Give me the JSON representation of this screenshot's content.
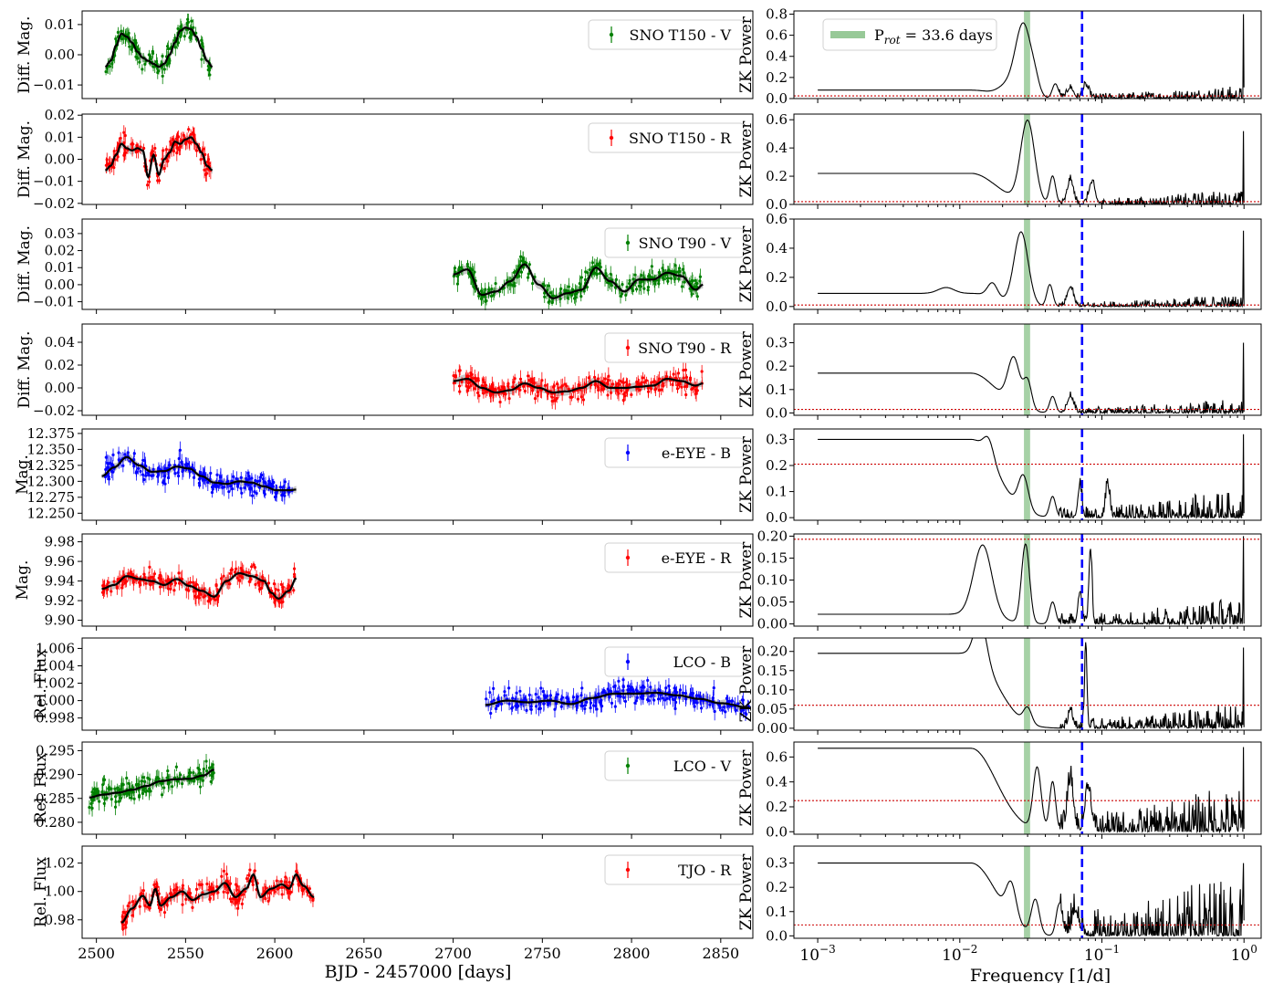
{
  "figure": {
    "left_xlabel": "BJD - 2457000 [days]",
    "right_xlabel": "Frequency [1/d]",
    "right_ylabel": "ZK Power",
    "left_xticks": [
      "2500",
      "2550",
      "2600",
      "2650",
      "2700",
      "2750",
      "2800",
      "2850"
    ],
    "left_xticks_values": [
      2500,
      2550,
      2600,
      2650,
      2700,
      2750,
      2800,
      2850
    ],
    "left_xlim": [
      2492,
      2868
    ],
    "right_xticks_labels": [
      {
        "base": "10",
        "exp": "−3"
      },
      {
        "base": "10",
        "exp": "−2"
      },
      {
        "base": "10",
        "exp": "−1"
      },
      {
        "base": "10",
        "exp": "0"
      }
    ],
    "right_xticks_values": [
      0.001,
      0.01,
      0.1,
      1
    ],
    "right_xlim": [
      0.00068,
      1.32
    ],
    "rotation_period_freq": 0.02976,
    "rotation_legend_main": "P",
    "rotation_legend_sub": "rot",
    "rotation_legend_rest": " = 33.6 days",
    "blue_dashed_freq": 0.0725,
    "colors": {
      "green": "#008000",
      "red": "#ff0000",
      "blue": "#0000ff",
      "band": "#97c997",
      "fap": "#cc0000",
      "model": "#000000",
      "gp": "#c8c8c8"
    }
  },
  "chart_data": [
    {
      "type": "line",
      "name": "SNO T150 - V",
      "ylabel": "Diff. Mag.",
      "yticks": [
        "0.01",
        "0.00",
        "−0.01"
      ],
      "yticks_values": [
        0.01,
        0.0,
        -0.01
      ],
      "ylim": [
        -0.0145,
        0.0145
      ],
      "color": "green",
      "x_range": [
        2505,
        2565
      ],
      "model": {
        "x": [
          2505,
          2508,
          2511,
          2514,
          2517,
          2520,
          2523,
          2526,
          2529,
          2532,
          2535,
          2538,
          2541,
          2544,
          2547,
          2550,
          2553,
          2556,
          2559,
          2562,
          2565
        ],
        "y": [
          -0.004,
          -0.002,
          0.003,
          0.007,
          0.006,
          0.004,
          0.001,
          -0.001,
          -0.002,
          -0.003,
          -0.004,
          -0.003,
          0.0,
          0.004,
          0.008,
          0.009,
          0.0085,
          0.006,
          0.002,
          -0.002,
          -0.004
        ]
      },
      "periodogram": {
        "fap": 0.025,
        "ylim": [
          0,
          0.83
        ],
        "yticks": [
          "0.0",
          "0.2",
          "0.4",
          "0.6",
          "0.8"
        ],
        "yticks_values": [
          0,
          0.2,
          0.4,
          0.6,
          0.8
        ],
        "peaks": [
          {
            "f": 0.028,
            "h": 0.7,
            "w": 0.08
          },
          {
            "f": 0.021,
            "h": 0.08,
            "w": 0.08
          },
          {
            "f": 0.034,
            "h": 0.08,
            "w": 0.04
          },
          {
            "f": 0.047,
            "h": 0.14,
            "w": 0.03
          },
          {
            "f": 0.06,
            "h": 0.1,
            "w": 0.03
          },
          {
            "f": 0.077,
            "h": 0.12,
            "w": 0.03
          }
        ],
        "base": 0.08,
        "noise": 0.12,
        "spike": 0.8
      }
    },
    {
      "type": "line",
      "name": "SNO T150 - R",
      "ylabel": "Diff. Mag.",
      "yticks": [
        "0.02",
        "0.01",
        "0.00",
        "−0.01",
        "−0.02"
      ],
      "yticks_values": [
        0.02,
        0.01,
        0.0,
        -0.01,
        -0.02
      ],
      "ylim": [
        -0.0205,
        0.0205
      ],
      "color": "red",
      "x_range": [
        2505,
        2565
      ],
      "model": {
        "x": [
          2505,
          2508,
          2511,
          2514,
          2517,
          2520,
          2523,
          2526,
          2529,
          2532,
          2535,
          2538,
          2541,
          2544,
          2547,
          2550,
          2553,
          2556,
          2559,
          2562,
          2565
        ],
        "y": [
          -0.005,
          -0.003,
          0.002,
          0.007,
          0.005,
          0.004,
          0.005,
          0.004,
          -0.008,
          0.002,
          -0.007,
          0.0,
          0.003,
          0.008,
          0.007,
          0.009,
          0.01,
          0.007,
          0.003,
          -0.003,
          -0.005
        ]
      },
      "periodogram": {
        "fap": 0.02,
        "ylim": [
          0,
          0.64
        ],
        "yticks": [
          "0.0",
          "0.2",
          "0.4",
          "0.6"
        ],
        "yticks_values": [
          0,
          0.2,
          0.4,
          0.6
        ],
        "peaks": [
          {
            "f": 0.03,
            "h": 0.58,
            "w": 0.07
          },
          {
            "f": 0.045,
            "h": 0.2,
            "w": 0.03
          },
          {
            "f": 0.06,
            "h": 0.17,
            "w": 0.03
          },
          {
            "f": 0.085,
            "h": 0.15,
            "w": 0.03
          }
        ],
        "base": 0.22,
        "noise": 0.1,
        "spike": 0.52
      }
    },
    {
      "type": "line",
      "name": "SNO T90 - V",
      "ylabel": "Diff. Mag.",
      "yticks": [
        "0.03",
        "0.02",
        "0.01",
        "0.00",
        "−0.01"
      ],
      "yticks_values": [
        0.03,
        0.02,
        0.01,
        0.0,
        -0.01
      ],
      "ylim": [
        -0.0145,
        0.0385
      ],
      "color": "green",
      "x_range": [
        2700,
        2840
      ],
      "model": {
        "x": [
          2700,
          2708,
          2716,
          2724,
          2732,
          2740,
          2748,
          2756,
          2764,
          2772,
          2780,
          2788,
          2796,
          2804,
          2812,
          2820,
          2828,
          2836,
          2840
        ],
        "y": [
          0.006,
          0.009,
          -0.006,
          -0.004,
          0.002,
          0.012,
          0.0,
          -0.008,
          -0.005,
          -0.003,
          0.01,
          0.002,
          -0.004,
          0.003,
          0.003,
          0.007,
          0.005,
          -0.003,
          0.0
        ]
      },
      "periodogram": {
        "fap": 0.01,
        "ylim": [
          -0.02,
          0.6
        ],
        "yticks": [
          "0.0",
          "0.2",
          "0.4",
          "0.6"
        ],
        "yticks_values": [
          0,
          0.2,
          0.4,
          0.6
        ],
        "peaks": [
          {
            "f": 0.027,
            "h": 0.5,
            "w": 0.07
          },
          {
            "f": 0.017,
            "h": 0.1,
            "w": 0.05
          },
          {
            "f": 0.008,
            "h": 0.04,
            "w": 0.08
          },
          {
            "f": 0.043,
            "h": 0.15,
            "w": 0.03
          },
          {
            "f": 0.06,
            "h": 0.13,
            "w": 0.03
          }
        ],
        "base": 0.09,
        "noise": 0.08,
        "spike": 0.52
      }
    },
    {
      "type": "line",
      "name": "SNO T90 - R",
      "ylabel": "Diff. Mag.",
      "yticks": [
        "0.04",
        "0.02",
        "0.00",
        "−0.02"
      ],
      "yticks_values": [
        0.04,
        0.02,
        0.0,
        -0.02
      ],
      "ylim": [
        -0.024,
        0.056
      ],
      "color": "red",
      "x_range": [
        2700,
        2840
      ],
      "model": {
        "x": [
          2700,
          2708,
          2716,
          2724,
          2732,
          2740,
          2748,
          2756,
          2764,
          2772,
          2780,
          2788,
          2796,
          2804,
          2812,
          2820,
          2828,
          2836,
          2840
        ],
        "y": [
          0.006,
          0.008,
          0.0,
          -0.004,
          -0.002,
          0.004,
          0.0,
          -0.004,
          -0.003,
          0.0,
          0.006,
          0.0,
          0.0,
          0.001,
          0.002,
          0.008,
          0.006,
          0.002,
          0.004
        ]
      },
      "periodogram": {
        "fap": 0.015,
        "ylim": [
          -0.01,
          0.38
        ],
        "yticks": [
          "0.0",
          "0.1",
          "0.2",
          "0.3"
        ],
        "yticks_values": [
          0,
          0.1,
          0.2,
          0.3
        ],
        "peaks": [
          {
            "f": 0.024,
            "h": 0.2,
            "w": 0.06
          },
          {
            "f": 0.03,
            "h": 0.12,
            "w": 0.04
          },
          {
            "f": 0.045,
            "h": 0.07,
            "w": 0.03
          },
          {
            "f": 0.06,
            "h": 0.07,
            "w": 0.03
          }
        ],
        "base": 0.17,
        "noise": 0.06,
        "spike": 0.3
      }
    },
    {
      "type": "line",
      "name": "e-EYE - B",
      "ylabel": "Mag.",
      "yticks": [
        "12.375",
        "12.350",
        "12.325",
        "12.300",
        "12.275",
        "12.250"
      ],
      "yticks_values": [
        12.375,
        12.35,
        12.325,
        12.3,
        12.275,
        12.25
      ],
      "ylim": [
        12.239,
        12.382
      ],
      "color": "blue",
      "x_range": [
        2503,
        2612
      ],
      "model": {
        "x": [
          2503,
          2510,
          2517,
          2524,
          2531,
          2538,
          2545,
          2552,
          2559,
          2566,
          2573,
          2580,
          2587,
          2594,
          2601,
          2608,
          2612
        ],
        "y": [
          12.308,
          12.322,
          12.338,
          12.325,
          12.315,
          12.316,
          12.323,
          12.32,
          12.308,
          12.298,
          12.296,
          12.3,
          12.298,
          12.292,
          12.286,
          12.286,
          12.287
        ]
      },
      "periodogram": {
        "fap": 0.205,
        "ylim": [
          -0.01,
          0.34
        ],
        "yticks": [
          "0.0",
          "0.1",
          "0.2",
          "0.3"
        ],
        "yticks_values": [
          0,
          0.1,
          0.2,
          0.3
        ],
        "peaks": [
          {
            "f": 0.028,
            "h": 0.13,
            "w": 0.05
          },
          {
            "f": 0.016,
            "h": 0.07,
            "w": 0.05
          },
          {
            "f": 0.045,
            "h": 0.08,
            "w": 0.03
          },
          {
            "f": 0.07,
            "h": 0.12,
            "w": 0.02
          },
          {
            "f": 0.11,
            "h": 0.12,
            "w": 0.02
          }
        ],
        "base": 0.3,
        "noise": 0.1,
        "spike": 0.32
      }
    },
    {
      "type": "line",
      "name": "e-EYE - R",
      "ylabel": "Mag.",
      "yticks": [
        "9.98",
        "9.96",
        "9.94",
        "9.92",
        "9.90"
      ],
      "yticks_values": [
        9.98,
        9.96,
        9.94,
        9.92,
        9.9
      ],
      "ylim": [
        9.894,
        9.988
      ],
      "color": "red",
      "x_range": [
        2503,
        2612
      ],
      "model": {
        "x": [
          2503,
          2510,
          2517,
          2524,
          2531,
          2538,
          2545,
          2552,
          2559,
          2566,
          2573,
          2580,
          2587,
          2594,
          2598,
          2602,
          2608,
          2612
        ],
        "y": [
          9.932,
          9.936,
          9.945,
          9.942,
          9.94,
          9.936,
          9.942,
          9.935,
          9.93,
          9.924,
          9.94,
          9.948,
          9.945,
          9.94,
          9.928,
          9.922,
          9.93,
          9.943
        ]
      },
      "periodogram": {
        "fap": 0.193,
        "ylim": [
          -0.005,
          0.205
        ],
        "yticks": [
          "0.00",
          "0.05",
          "0.10",
          "0.15",
          "0.20"
        ],
        "yticks_values": [
          0,
          0.05,
          0.1,
          0.15,
          0.2
        ],
        "peaks": [
          {
            "f": 0.0145,
            "h": 0.16,
            "w": 0.09
          },
          {
            "f": 0.029,
            "h": 0.18,
            "w": 0.04
          },
          {
            "f": 0.045,
            "h": 0.05,
            "w": 0.03
          },
          {
            "f": 0.083,
            "h": 0.17,
            "w": 0.015
          },
          {
            "f": 0.07,
            "h": 0.07,
            "w": 0.02
          }
        ],
        "base": 0.022,
        "noise": 0.06,
        "spike": 0.2
      }
    },
    {
      "type": "line",
      "name": "LCO - B",
      "ylabel": "Rel. Flux",
      "yticks": [
        "1.006",
        "1.004",
        "1.002",
        "1.000",
        "0.998"
      ],
      "yticks_values": [
        1.006,
        1.004,
        1.002,
        1.0,
        0.998
      ],
      "ylim": [
        0.9966,
        1.0072
      ],
      "color": "blue",
      "x_range": [
        2718,
        2866
      ],
      "model": {
        "x": [
          2718,
          2730,
          2742,
          2754,
          2766,
          2778,
          2790,
          2802,
          2814,
          2826,
          2838,
          2850,
          2866
        ],
        "y": [
          0.9995,
          1.0,
          0.9998,
          1.0,
          0.9996,
          1.0003,
          1.0008,
          1.0008,
          1.0009,
          1.0006,
          1.0002,
          0.9997,
          0.9992
        ]
      },
      "periodogram": {
        "fap": 0.06,
        "ylim": [
          -0.005,
          0.235
        ],
        "yticks": [
          "0.00",
          "0.05",
          "0.10",
          "0.15",
          "0.20"
        ],
        "yticks_values": [
          0,
          0.05,
          0.1,
          0.15,
          0.2
        ],
        "peaks": [
          {
            "f": 0.014,
            "h": 0.1,
            "w": 0.06
          },
          {
            "f": 0.077,
            "h": 0.22,
            "w": 0.012
          },
          {
            "f": 0.03,
            "h": 0.04,
            "w": 0.04
          },
          {
            "f": 0.06,
            "h": 0.05,
            "w": 0.02
          }
        ],
        "base": 0.195,
        "noise": 0.06,
        "spike": 0.21
      }
    },
    {
      "type": "line",
      "name": "LCO - V",
      "ylabel": "Rel. Flux",
      "yticks": [
        "0.295",
        "0.290",
        "0.285",
        "0.280"
      ],
      "yticks_values": [
        0.295,
        0.29,
        0.285,
        0.28
      ],
      "ylim": [
        0.2775,
        0.2968
      ],
      "color": "green",
      "x_range": [
        2496,
        2566
      ],
      "model": {
        "x": [
          2496,
          2504,
          2512,
          2520,
          2528,
          2536,
          2544,
          2552,
          2560,
          2566
        ],
        "y": [
          0.2852,
          0.2858,
          0.2862,
          0.2868,
          0.2876,
          0.2886,
          0.289,
          0.2891,
          0.2898,
          0.291
        ]
      },
      "periodogram": {
        "fap": 0.25,
        "ylim": [
          -0.02,
          0.72
        ],
        "yticks": [
          "0.0",
          "0.2",
          "0.4",
          "0.6"
        ],
        "yticks_values": [
          0,
          0.2,
          0.4,
          0.6
        ],
        "peaks": [
          {
            "f": 0.035,
            "h": 0.5,
            "w": 0.04
          },
          {
            "f": 0.045,
            "h": 0.4,
            "w": 0.03
          },
          {
            "f": 0.06,
            "h": 0.4,
            "w": 0.03
          },
          {
            "f": 0.08,
            "h": 0.35,
            "w": 0.03
          }
        ],
        "base": 0.67,
        "noise": 0.35,
        "spike": 0.68
      }
    },
    {
      "type": "line",
      "name": "TJO - R",
      "ylabel": "Rel. Flux",
      "yticks": [
        "1.02",
        "1.00",
        "0.98"
      ],
      "yticks_values": [
        1.02,
        1.0,
        0.98
      ],
      "ylim": [
        0.967,
        1.032
      ],
      "color": "red",
      "x_range": [
        2514,
        2622
      ],
      "model": {
        "x": [
          2514,
          2520,
          2526,
          2530,
          2533,
          2536,
          2542,
          2548,
          2554,
          2560,
          2566,
          2572,
          2578,
          2584,
          2588,
          2592,
          2598,
          2604,
          2608,
          2612,
          2616,
          2622
        ],
        "y": [
          0.978,
          0.988,
          0.997,
          0.99,
          1.002,
          0.99,
          0.996,
          1.0,
          0.994,
          0.998,
          1.0,
          1.006,
          0.996,
          1.002,
          1.012,
          0.996,
          1.002,
          1.005,
          1.002,
          1.012,
          1.004,
          0.996
        ]
      },
      "periodogram": {
        "fap": 0.045,
        "ylim": [
          -0.01,
          0.37
        ],
        "yticks": [
          "0.0",
          "0.1",
          "0.2",
          "0.3"
        ],
        "yticks_values": [
          0,
          0.1,
          0.2,
          0.3
        ],
        "peaks": [
          {
            "f": 0.023,
            "h": 0.14,
            "w": 0.05
          },
          {
            "f": 0.034,
            "h": 0.14,
            "w": 0.04
          },
          {
            "f": 0.05,
            "h": 0.13,
            "w": 0.03
          },
          {
            "f": 0.065,
            "h": 0.1,
            "w": 0.03
          }
        ],
        "base": 0.3,
        "noise": 0.25,
        "spike": 0.3
      }
    }
  ]
}
